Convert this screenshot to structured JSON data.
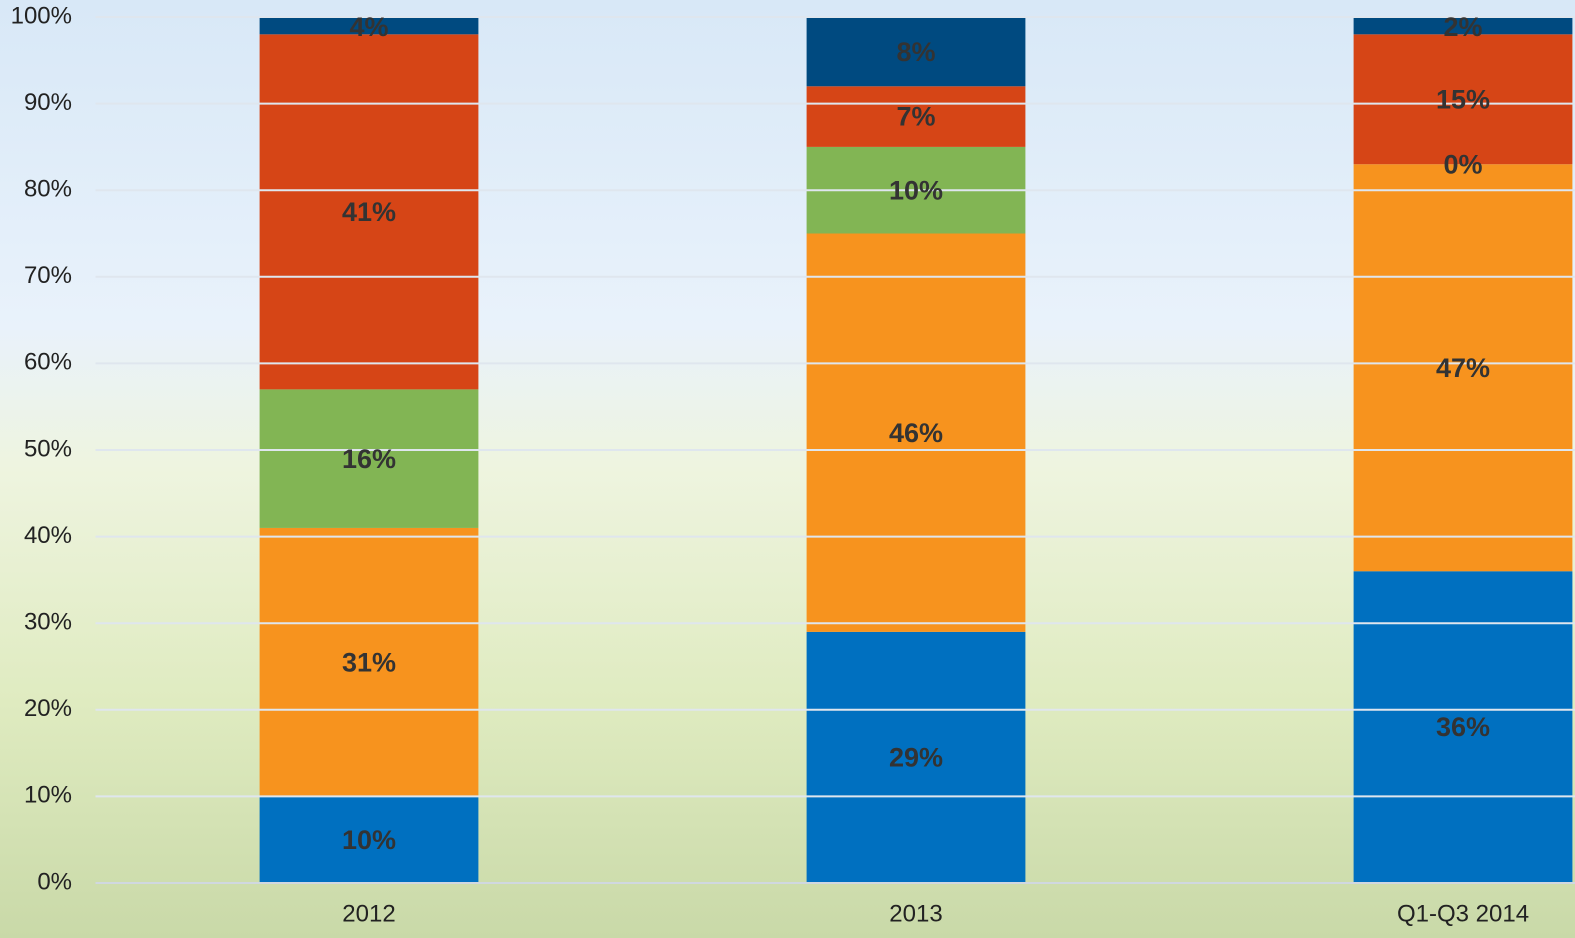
{
  "chart_data": {
    "type": "stacked_bar",
    "categories": [
      "2012",
      "2013",
      "Q1-Q3 2014"
    ],
    "series": [
      {
        "color": "#0070c0",
        "values": [
          10,
          29,
          36
        ],
        "value_labels": [
          "10%",
          "29%",
          "36%"
        ]
      },
      {
        "color": "#f7931e",
        "values": [
          31,
          46,
          47
        ],
        "value_labels": [
          "31%",
          "46%",
          "47%"
        ]
      },
      {
        "color": "#82b554",
        "values": [
          16,
          10,
          0
        ],
        "value_labels": [
          "16%",
          "10%",
          "0%"
        ]
      },
      {
        "color": "#d64516",
        "values": [
          41,
          7,
          15
        ],
        "value_labels": [
          "41%",
          "7%",
          "15%"
        ]
      },
      {
        "color": "#004a80",
        "values": [
          4,
          8,
          2
        ],
        "value_labels": [
          "4%",
          "8%",
          "2%"
        ]
      }
    ],
    "ylim": [
      0,
      100
    ],
    "yticks": [
      {
        "value": 0,
        "label": "0%"
      },
      {
        "value": 10,
        "label": "10%"
      },
      {
        "value": 20,
        "label": "20%"
      },
      {
        "value": 30,
        "label": "30%"
      },
      {
        "value": 40,
        "label": "40%"
      },
      {
        "value": 50,
        "label": "50%"
      },
      {
        "value": 60,
        "label": "60%"
      },
      {
        "value": 70,
        "label": "70%"
      },
      {
        "value": 80,
        "label": "80%"
      },
      {
        "value": 90,
        "label": "90%"
      },
      {
        "value": 100,
        "label": "100%"
      }
    ],
    "grid": true
  }
}
